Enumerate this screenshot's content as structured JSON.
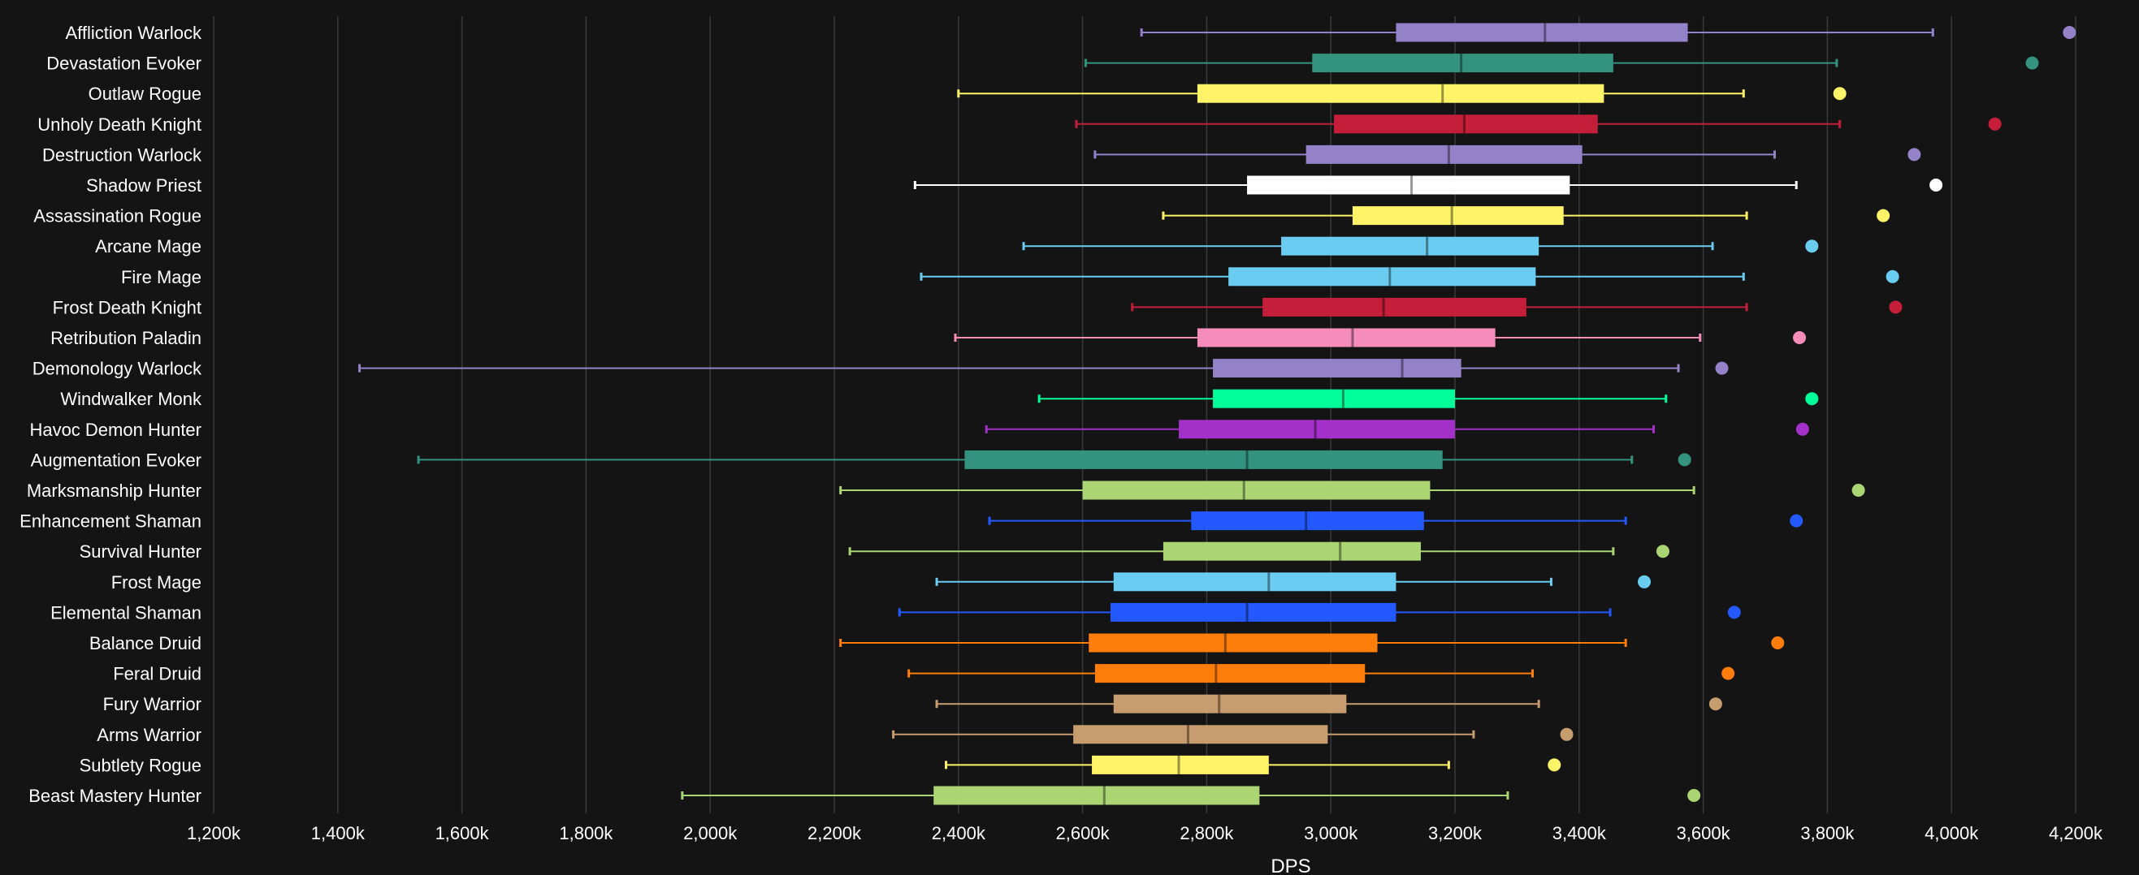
{
  "chart_data": {
    "type": "boxplot",
    "xlabel": "DPS",
    "xlim": [
      1200,
      4200
    ],
    "x_ticks": [
      "1,200k",
      "1,400k",
      "1,600k",
      "1,800k",
      "2,000k",
      "2,200k",
      "2,400k",
      "2,600k",
      "2,800k",
      "3,000k",
      "3,200k",
      "3,400k",
      "3,600k",
      "3,800k",
      "4,000k",
      "4,200k"
    ],
    "x_tick_values": [
      1200,
      1400,
      1600,
      1800,
      2000,
      2200,
      2400,
      2600,
      2800,
      3000,
      3200,
      3400,
      3600,
      3800,
      4000,
      4200
    ],
    "grid": true,
    "series": [
      {
        "name": "Affliction Warlock",
        "min": 2695,
        "q1": 3105,
        "median": 3345,
        "q3": 3575,
        "max": 3970,
        "outlier": 4190,
        "color": "#9482c9"
      },
      {
        "name": "Devastation Evoker",
        "min": 2605,
        "q1": 2970,
        "median": 3210,
        "q3": 3455,
        "max": 3815,
        "outlier": 4130,
        "color": "#33937f"
      },
      {
        "name": "Outlaw Rogue",
        "min": 2400,
        "q1": 2785,
        "median": 3180,
        "q3": 3440,
        "max": 3665,
        "outlier": 3820,
        "color": "#fff468"
      },
      {
        "name": "Unholy Death Knight",
        "min": 2590,
        "q1": 3005,
        "median": 3215,
        "q3": 3430,
        "max": 3820,
        "outlier": 4070,
        "color": "#c41e3a"
      },
      {
        "name": "Destruction Warlock",
        "min": 2620,
        "q1": 2960,
        "median": 3190,
        "q3": 3405,
        "max": 3715,
        "outlier": 3940,
        "color": "#9482c9"
      },
      {
        "name": "Shadow Priest",
        "min": 2330,
        "q1": 2865,
        "median": 3130,
        "q3": 3385,
        "max": 3750,
        "outlier": 3975,
        "color": "#ffffff"
      },
      {
        "name": "Assassination Rogue",
        "min": 2730,
        "q1": 3035,
        "median": 3195,
        "q3": 3375,
        "max": 3670,
        "outlier": 3890,
        "color": "#fff468"
      },
      {
        "name": "Arcane Mage",
        "min": 2505,
        "q1": 2920,
        "median": 3155,
        "q3": 3335,
        "max": 3615,
        "outlier": 3775,
        "color": "#69ccf0"
      },
      {
        "name": "Fire Mage",
        "min": 2340,
        "q1": 2835,
        "median": 3095,
        "q3": 3330,
        "max": 3665,
        "outlier": 3905,
        "color": "#69ccf0"
      },
      {
        "name": "Frost Death Knight",
        "min": 2680,
        "q1": 2890,
        "median": 3085,
        "q3": 3315,
        "max": 3670,
        "outlier": 3910,
        "color": "#c41e3a"
      },
      {
        "name": "Retribution Paladin",
        "min": 2395,
        "q1": 2785,
        "median": 3035,
        "q3": 3265,
        "max": 3595,
        "outlier": 3755,
        "color": "#f58cba"
      },
      {
        "name": "Demonology Warlock",
        "min": 1435,
        "q1": 2810,
        "median": 3115,
        "q3": 3210,
        "max": 3560,
        "outlier": 3630,
        "color": "#9482c9"
      },
      {
        "name": "Windwalker Monk",
        "min": 2530,
        "q1": 2810,
        "median": 3020,
        "q3": 3200,
        "max": 3540,
        "outlier": 3775,
        "color": "#00ff98"
      },
      {
        "name": "Havoc Demon Hunter",
        "min": 2445,
        "q1": 2755,
        "median": 2975,
        "q3": 3200,
        "max": 3520,
        "outlier": 3760,
        "color": "#a330c9"
      },
      {
        "name": "Augmentation Evoker",
        "min": 1530,
        "q1": 2410,
        "median": 2865,
        "q3": 3180,
        "max": 3485,
        "outlier": 3570,
        "color": "#33937f"
      },
      {
        "name": "Marksmanship Hunter",
        "min": 2210,
        "q1": 2600,
        "median": 2860,
        "q3": 3160,
        "max": 3585,
        "outlier": 3850,
        "color": "#abd473"
      },
      {
        "name": "Enhancement Shaman",
        "min": 2450,
        "q1": 2775,
        "median": 2960,
        "q3": 3150,
        "max": 3475,
        "outlier": 3750,
        "color": "#2459ff"
      },
      {
        "name": "Survival Hunter",
        "min": 2225,
        "q1": 2730,
        "median": 3015,
        "q3": 3145,
        "max": 3455,
        "outlier": 3535,
        "color": "#abd473"
      },
      {
        "name": "Frost Mage",
        "min": 2365,
        "q1": 2650,
        "median": 2900,
        "q3": 3105,
        "max": 3355,
        "outlier": 3505,
        "color": "#69ccf0"
      },
      {
        "name": "Elemental Shaman",
        "min": 2305,
        "q1": 2645,
        "median": 2865,
        "q3": 3105,
        "max": 3450,
        "outlier": 3650,
        "color": "#2459ff"
      },
      {
        "name": "Balance Druid",
        "min": 2210,
        "q1": 2610,
        "median": 2830,
        "q3": 3075,
        "max": 3475,
        "outlier": 3720,
        "color": "#ff7d0a"
      },
      {
        "name": "Feral Druid",
        "min": 2320,
        "q1": 2620,
        "median": 2815,
        "q3": 3055,
        "max": 3325,
        "outlier": 3640,
        "color": "#ff7d0a"
      },
      {
        "name": "Fury Warrior",
        "min": 2365,
        "q1": 2650,
        "median": 2820,
        "q3": 3025,
        "max": 3335,
        "outlier": 3620,
        "color": "#c79c6e"
      },
      {
        "name": "Arms Warrior",
        "min": 2295,
        "q1": 2585,
        "median": 2770,
        "q3": 2995,
        "max": 3230,
        "outlier": 3380,
        "color": "#c79c6e"
      },
      {
        "name": "Subtlety Rogue",
        "min": 2380,
        "q1": 2615,
        "median": 2755,
        "q3": 2900,
        "max": 3190,
        "outlier": 3360,
        "color": "#fff468"
      },
      {
        "name": "Beast Mastery Hunter",
        "min": 1955,
        "q1": 2360,
        "median": 2635,
        "q3": 2885,
        "max": 3285,
        "outlier": 3585,
        "color": "#abd473"
      }
    ]
  }
}
